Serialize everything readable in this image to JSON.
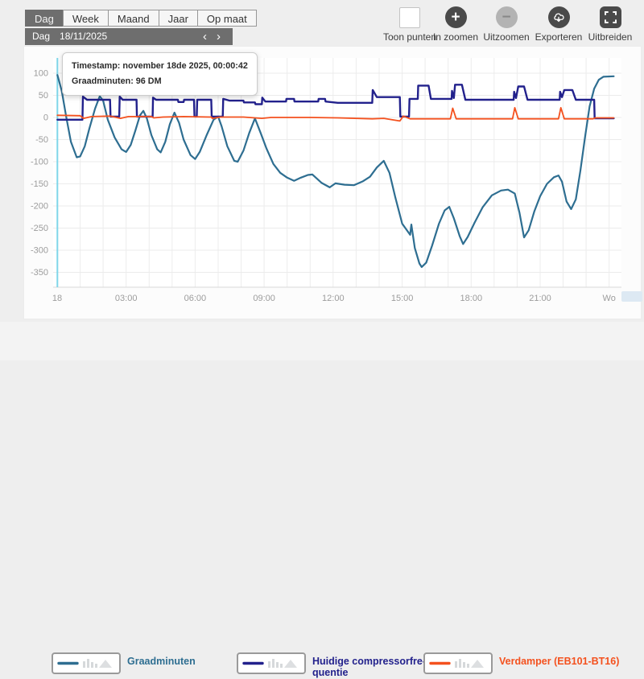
{
  "toolbar": {
    "tabs": [
      {
        "label": "Dag",
        "active": true
      },
      {
        "label": "Week",
        "active": false
      },
      {
        "label": "Maand",
        "active": false
      },
      {
        "label": "Jaar",
        "active": false
      },
      {
        "label": "Op maat",
        "active": false
      }
    ],
    "date_bar": {
      "period": "Dag",
      "date": "18/11/2025",
      "prev_icon": "‹",
      "next_icon": "›"
    },
    "controls": {
      "show_points": {
        "label": "Toon punten",
        "checked": false
      },
      "zoom_in": {
        "label": "In zoomen",
        "icon": "+"
      },
      "zoom_out": {
        "label": "Uitzoomen",
        "icon": "−",
        "disabled": true
      },
      "export": {
        "label": "Exporteren",
        "icon": "cloud-download"
      },
      "expand": {
        "label": "Uitbreiden",
        "icon": "expand-corners"
      }
    }
  },
  "tooltip": {
    "line1": "Timestamp: november 18de 2025, 00:00:42",
    "line2": "Graadminuten: 96 DM"
  },
  "legend": {
    "items": [
      {
        "label": "Graadminuten",
        "color": "#2e6e91"
      },
      {
        "label": "Huidige compressorfre-\nquentie",
        "color": "#22218c"
      },
      {
        "label": "Verdamper (EB101-BT16)",
        "color": "#f4511e"
      }
    ]
  },
  "chart_data": {
    "type": "line",
    "title": "",
    "xlabel": "",
    "ylabel": "",
    "x_range_hours": [
      0,
      24
    ],
    "ylim": [
      -384,
      134
    ],
    "grid": true,
    "legend_position": "bottom",
    "crosshair_t": 0.012,
    "crosshair_color": "#7fd6e9",
    "x_axis": {
      "labels": [
        {
          "t": 0,
          "text": "18"
        },
        {
          "t": 3,
          "text": "03:00"
        },
        {
          "t": 6,
          "text": "06:00"
        },
        {
          "t": 9,
          "text": "09:00"
        },
        {
          "t": 12,
          "text": "12:00"
        },
        {
          "t": 15,
          "text": "15:00"
        },
        {
          "t": 18,
          "text": "18:00"
        },
        {
          "t": 21,
          "text": "21:00"
        },
        {
          "t": 24,
          "text": "Wo"
        }
      ]
    },
    "y_axis": {
      "ticks": [
        100,
        50,
        0,
        -50,
        -100,
        -150,
        -200,
        -250,
        -300,
        -350
      ]
    },
    "series": [
      {
        "name": "Graadminuten",
        "unit": "DM",
        "color": "#2e6e91",
        "points": [
          [
            0.01,
            96
          ],
          [
            0.2,
            60
          ],
          [
            0.4,
            0
          ],
          [
            0.6,
            -55
          ],
          [
            0.85,
            -90
          ],
          [
            1,
            -88
          ],
          [
            1.2,
            -65
          ],
          [
            1.4,
            -25
          ],
          [
            1.65,
            20
          ],
          [
            1.85,
            48
          ],
          [
            2,
            38
          ],
          [
            2.2,
            -5
          ],
          [
            2.5,
            -45
          ],
          [
            2.8,
            -72
          ],
          [
            3,
            -78
          ],
          [
            3.2,
            -62
          ],
          [
            3.4,
            -30
          ],
          [
            3.6,
            5
          ],
          [
            3.75,
            15
          ],
          [
            3.9,
            -2
          ],
          [
            4.1,
            -40
          ],
          [
            4.35,
            -72
          ],
          [
            4.5,
            -79
          ],
          [
            4.7,
            -55
          ],
          [
            4.9,
            -15
          ],
          [
            5.1,
            11
          ],
          [
            5.3,
            -12
          ],
          [
            5.5,
            -50
          ],
          [
            5.8,
            -85
          ],
          [
            6,
            -94
          ],
          [
            6.2,
            -78
          ],
          [
            6.5,
            -40
          ],
          [
            6.8,
            -5
          ],
          [
            7,
            2
          ],
          [
            7.15,
            -20
          ],
          [
            7.4,
            -65
          ],
          [
            7.7,
            -98
          ],
          [
            7.85,
            -100
          ],
          [
            8.1,
            -75
          ],
          [
            8.35,
            -35
          ],
          [
            8.6,
            -2
          ],
          [
            8.85,
            -35
          ],
          [
            9.1,
            -70
          ],
          [
            9.4,
            -105
          ],
          [
            9.7,
            -125
          ],
          [
            10,
            -136
          ],
          [
            10.3,
            -143
          ],
          [
            10.6,
            -136
          ],
          [
            10.9,
            -130
          ],
          [
            11.1,
            -129
          ],
          [
            11.5,
            -148
          ],
          [
            11.85,
            -158
          ],
          [
            12.1,
            -149
          ],
          [
            12.5,
            -152
          ],
          [
            12.9,
            -153
          ],
          [
            13.3,
            -144
          ],
          [
            13.6,
            -134
          ],
          [
            13.9,
            -113
          ],
          [
            14.2,
            -98
          ],
          [
            14.45,
            -125
          ],
          [
            14.7,
            -180
          ],
          [
            15,
            -240
          ],
          [
            15.35,
            -265
          ],
          [
            15.4,
            -242
          ],
          [
            15.55,
            -295
          ],
          [
            15.75,
            -330
          ],
          [
            15.85,
            -338
          ],
          [
            16.05,
            -328
          ],
          [
            16.3,
            -290
          ],
          [
            16.6,
            -240
          ],
          [
            16.85,
            -210
          ],
          [
            17.05,
            -202
          ],
          [
            17.25,
            -228
          ],
          [
            17.5,
            -268
          ],
          [
            17.65,
            -286
          ],
          [
            17.85,
            -270
          ],
          [
            18.15,
            -238
          ],
          [
            18.5,
            -203
          ],
          [
            18.9,
            -176
          ],
          [
            19.3,
            -165
          ],
          [
            19.6,
            -163
          ],
          [
            19.9,
            -172
          ],
          [
            20.1,
            -215
          ],
          [
            20.3,
            -271
          ],
          [
            20.5,
            -255
          ],
          [
            20.75,
            -212
          ],
          [
            21,
            -178
          ],
          [
            21.3,
            -150
          ],
          [
            21.6,
            -135
          ],
          [
            21.8,
            -131
          ],
          [
            21.95,
            -145
          ],
          [
            22.15,
            -190
          ],
          [
            22.35,
            -207
          ],
          [
            22.55,
            -185
          ],
          [
            22.75,
            -120
          ],
          [
            22.95,
            -45
          ],
          [
            23.15,
            25
          ],
          [
            23.35,
            65
          ],
          [
            23.55,
            85
          ],
          [
            23.75,
            92
          ],
          [
            24.2,
            93
          ]
        ]
      },
      {
        "name": "Huidige compressorfrequentie",
        "color": "#22218c",
        "points": [
          [
            0.01,
            -5
          ],
          [
            1.1,
            -5
          ],
          [
            1.12,
            47
          ],
          [
            1.3,
            40
          ],
          [
            2.3,
            40
          ],
          [
            2.32,
            2
          ],
          [
            2.7,
            2
          ],
          [
            2.72,
            47
          ],
          [
            2.85,
            40
          ],
          [
            3.45,
            40
          ],
          [
            3.47,
            2
          ],
          [
            4.15,
            2
          ],
          [
            4.17,
            45
          ],
          [
            4.3,
            40
          ],
          [
            5.25,
            40
          ],
          [
            5.27,
            35
          ],
          [
            5.5,
            35
          ],
          [
            5.52,
            40
          ],
          [
            5.95,
            40
          ],
          [
            5.97,
            2
          ],
          [
            6.07,
            2
          ],
          [
            6.09,
            40
          ],
          [
            6.7,
            40
          ],
          [
            6.72,
            2
          ],
          [
            7.2,
            2
          ],
          [
            7.22,
            42
          ],
          [
            7.5,
            38
          ],
          [
            8.1,
            38
          ],
          [
            8.12,
            34
          ],
          [
            8.6,
            34
          ],
          [
            8.62,
            30
          ],
          [
            8.9,
            30
          ],
          [
            8.92,
            45
          ],
          [
            9.05,
            36
          ],
          [
            9.95,
            36
          ],
          [
            9.97,
            42
          ],
          [
            10.3,
            42
          ],
          [
            10.32,
            36
          ],
          [
            11.35,
            36
          ],
          [
            11.37,
            42
          ],
          [
            11.65,
            42
          ],
          [
            11.67,
            36
          ],
          [
            12.2,
            33
          ],
          [
            13.7,
            33
          ],
          [
            13.72,
            62
          ],
          [
            13.9,
            46
          ],
          [
            14.9,
            46
          ],
          [
            14.92,
            2
          ],
          [
            15.3,
            2
          ],
          [
            15.32,
            42
          ],
          [
            15.68,
            42
          ],
          [
            15.7,
            72
          ],
          [
            16.15,
            72
          ],
          [
            16.25,
            42
          ],
          [
            17.15,
            42
          ],
          [
            17.17,
            60
          ],
          [
            17.25,
            44
          ],
          [
            17.3,
            74
          ],
          [
            17.6,
            74
          ],
          [
            17.75,
            40
          ],
          [
            19.85,
            40
          ],
          [
            19.87,
            58
          ],
          [
            19.95,
            44
          ],
          [
            20.05,
            70
          ],
          [
            20.3,
            70
          ],
          [
            20.45,
            40
          ],
          [
            21.85,
            40
          ],
          [
            21.87,
            58
          ],
          [
            21.95,
            46
          ],
          [
            22.05,
            62
          ],
          [
            22.4,
            62
          ],
          [
            22.55,
            40
          ],
          [
            23.35,
            40
          ],
          [
            23.37,
            -2
          ],
          [
            24.2,
            -2
          ]
        ]
      },
      {
        "name": "Verdamper (EB101-BT16)",
        "color": "#f4511e",
        "points": [
          [
            0.01,
            5
          ],
          [
            1,
            4
          ],
          [
            1.15,
            -2
          ],
          [
            1.5,
            2
          ],
          [
            2.3,
            3
          ],
          [
            2.75,
            -2
          ],
          [
            3.1,
            2
          ],
          [
            4.1,
            2
          ],
          [
            4.2,
            -1
          ],
          [
            4.6,
            1
          ],
          [
            5.5,
            2
          ],
          [
            6.7,
            1
          ],
          [
            6.75,
            -2
          ],
          [
            7.1,
            1
          ],
          [
            8.1,
            1
          ],
          [
            8.9,
            -2
          ],
          [
            9.3,
            0
          ],
          [
            11,
            0
          ],
          [
            12.2,
            -1
          ],
          [
            13.7,
            -3
          ],
          [
            14.2,
            -2
          ],
          [
            14.9,
            -8
          ],
          [
            15.05,
            3
          ],
          [
            15.35,
            -3
          ],
          [
            17.1,
            -3
          ],
          [
            17.2,
            21
          ],
          [
            17.35,
            -3
          ],
          [
            19.8,
            -3
          ],
          [
            19.9,
            22
          ],
          [
            20.05,
            -3
          ],
          [
            21.8,
            -3
          ],
          [
            21.9,
            22
          ],
          [
            22.05,
            -3
          ],
          [
            23.3,
            -3
          ],
          [
            23.4,
            -1
          ],
          [
            24.2,
            -1
          ]
        ]
      }
    ]
  }
}
